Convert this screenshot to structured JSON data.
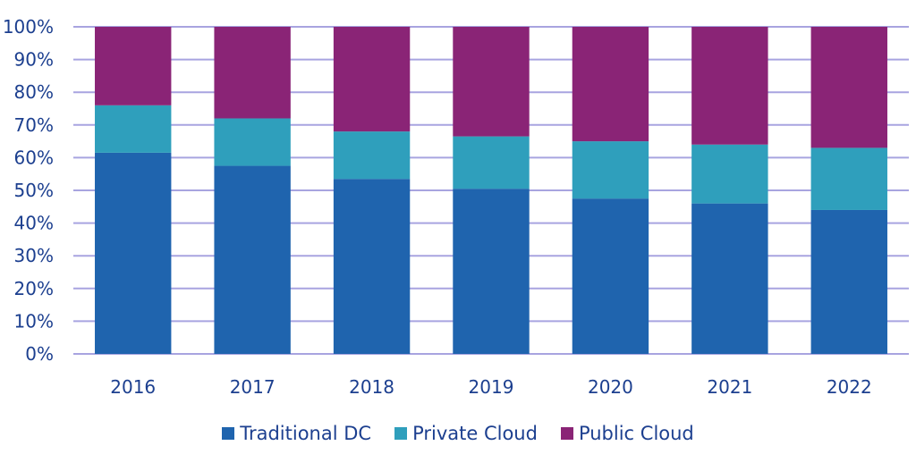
{
  "chart_data": {
    "type": "bar",
    "stacked": true,
    "categories": [
      "2016",
      "2017",
      "2018",
      "2019",
      "2020",
      "2021",
      "2022"
    ],
    "series": [
      {
        "name": "Traditional DC",
        "color": "#1f64ae",
        "values": [
          61.5,
          57.5,
          53.5,
          50.5,
          47.5,
          46,
          44
        ]
      },
      {
        "name": "Private Cloud",
        "color": "#2f9fbc",
        "values": [
          14.5,
          14.5,
          14.5,
          16,
          17.5,
          18,
          19
        ]
      },
      {
        "name": "Public Cloud",
        "color": "#8a2476",
        "values": [
          24,
          28,
          32,
          33.5,
          35,
          36,
          37
        ]
      }
    ],
    "yticks": [
      "0%",
      "10%",
      "20%",
      "30%",
      "40%",
      "50%",
      "60%",
      "70%",
      "80%",
      "90%",
      "100%"
    ],
    "ylim": [
      0,
      100
    ],
    "grid": true,
    "gridColor": "#a8a4e0",
    "axisTextColor": "#1c3f8f",
    "legend_position": "bottom"
  }
}
